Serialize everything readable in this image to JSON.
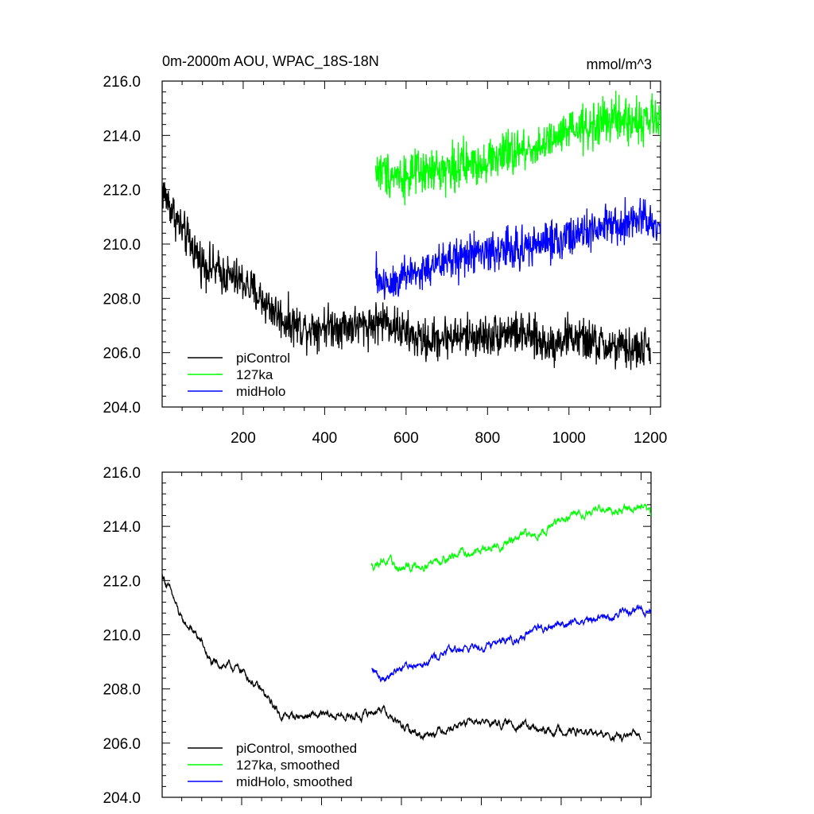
{
  "title": "0m-2000m AOU, WPAC_18S-18N",
  "units": "mmol/m^3",
  "chart_data": [
    {
      "type": "line",
      "panel": "top",
      "xlim": [
        1,
        1225
      ],
      "ylim": [
        204,
        216
      ],
      "x_ticks": [
        200,
        400,
        600,
        800,
        1000,
        1200
      ],
      "x_tick_labels": [
        "200",
        "400",
        "600",
        "800",
        "1000",
        "1200"
      ],
      "y_ticks": [
        204,
        206,
        208,
        210,
        212,
        214,
        216
      ],
      "y_tick_labels": [
        "204.0",
        "206.0",
        "208.0",
        "210.0",
        "212.0",
        "214.0",
        "216.0"
      ],
      "legend_position": "bottom-left",
      "series": [
        {
          "name": "piControl",
          "color": "#000000",
          "x_range": [
            1,
            1200
          ],
          "noise": 0.55,
          "anchors": [
            [
              1,
              212.0
            ],
            [
              50,
              210.5
            ],
            [
              100,
              209.3
            ],
            [
              150,
              208.9
            ],
            [
              200,
              208.6
            ],
            [
              250,
              207.9
            ],
            [
              300,
              207.2
            ],
            [
              350,
              206.9
            ],
            [
              400,
              207.0
            ],
            [
              450,
              207.0
            ],
            [
              500,
              207.0
            ],
            [
              550,
              207.2
            ],
            [
              600,
              206.7
            ],
            [
              650,
              206.4
            ],
            [
              700,
              206.6
            ],
            [
              750,
              206.6
            ],
            [
              800,
              206.6
            ],
            [
              850,
              206.8
            ],
            [
              900,
              206.6
            ],
            [
              950,
              206.3
            ],
            [
              1000,
              206.6
            ],
            [
              1050,
              206.4
            ],
            [
              1100,
              206.2
            ],
            [
              1150,
              206.1
            ],
            [
              1200,
              206.2
            ]
          ]
        },
        {
          "name": "127ka",
          "color": "#00ff00",
          "x_range": [
            525,
            1225
          ],
          "noise": 0.6,
          "anchors": [
            [
              525,
              212.7
            ],
            [
              600,
              212.5
            ],
            [
              650,
              212.6
            ],
            [
              700,
              212.8
            ],
            [
              750,
              212.9
            ],
            [
              800,
              213.1
            ],
            [
              850,
              213.3
            ],
            [
              900,
              213.5
            ],
            [
              950,
              213.7
            ],
            [
              1000,
              214.1
            ],
            [
              1050,
              214.3
            ],
            [
              1100,
              214.6
            ],
            [
              1150,
              214.5
            ],
            [
              1200,
              214.6
            ],
            [
              1225,
              214.4
            ]
          ]
        },
        {
          "name": "midHolo",
          "color": "#0000ff",
          "x_range": [
            525,
            1225
          ],
          "noise": 0.55,
          "anchors": [
            [
              525,
              208.8
            ],
            [
              550,
              208.5
            ],
            [
              600,
              208.9
            ],
            [
              650,
              209.0
            ],
            [
              700,
              209.4
            ],
            [
              750,
              209.6
            ],
            [
              800,
              209.7
            ],
            [
              850,
              209.8
            ],
            [
              900,
              209.9
            ],
            [
              950,
              210.1
            ],
            [
              1000,
              210.3
            ],
            [
              1050,
              210.4
            ],
            [
              1100,
              210.6
            ],
            [
              1150,
              210.8
            ],
            [
              1200,
              210.9
            ],
            [
              1225,
              210.7
            ]
          ]
        }
      ]
    },
    {
      "type": "line",
      "panel": "bottom",
      "xlim": [
        1,
        1225
      ],
      "ylim": [
        204,
        216
      ],
      "x_ticks": [
        200,
        400,
        600,
        800,
        1000,
        1200
      ],
      "y_ticks": [
        204,
        206,
        208,
        210,
        212,
        214,
        216
      ],
      "y_tick_labels": [
        "204.0",
        "206.0",
        "208.0",
        "210.0",
        "212.0",
        "214.0",
        "216.0"
      ],
      "legend_position": "bottom-left",
      "series": [
        {
          "name": "piControl, smoothed",
          "color": "#000000",
          "x_range": [
            1,
            1200
          ],
          "noise": 0.2,
          "anchors": [
            [
              1,
              212.2
            ],
            [
              25,
              211.5
            ],
            [
              50,
              210.5
            ],
            [
              75,
              210.2
            ],
            [
              100,
              209.7
            ],
            [
              125,
              208.9
            ],
            [
              150,
              208.9
            ],
            [
              200,
              208.7
            ],
            [
              250,
              207.9
            ],
            [
              300,
              207.0
            ],
            [
              350,
              207.0
            ],
            [
              400,
              207.0
            ],
            [
              450,
              207.0
            ],
            [
              500,
              207.0
            ],
            [
              550,
              207.3
            ],
            [
              600,
              206.6
            ],
            [
              650,
              206.3
            ],
            [
              700,
              206.5
            ],
            [
              750,
              206.7
            ],
            [
              800,
              206.8
            ],
            [
              850,
              206.7
            ],
            [
              900,
              206.7
            ],
            [
              950,
              206.4
            ],
            [
              1000,
              206.5
            ],
            [
              1050,
              206.4
            ],
            [
              1100,
              206.3
            ],
            [
              1150,
              206.2
            ],
            [
              1200,
              206.3
            ]
          ]
        },
        {
          "name": "127ka, smoothed",
          "color": "#00ff00",
          "x_range": [
            525,
            1225
          ],
          "noise": 0.22,
          "anchors": [
            [
              525,
              212.5
            ],
            [
              550,
              212.8
            ],
            [
              600,
              212.4
            ],
            [
              650,
              212.6
            ],
            [
              700,
              212.8
            ],
            [
              750,
              213.0
            ],
            [
              800,
              213.1
            ],
            [
              850,
              213.3
            ],
            [
              900,
              213.6
            ],
            [
              950,
              213.8
            ],
            [
              1000,
              214.2
            ],
            [
              1050,
              214.5
            ],
            [
              1100,
              214.7
            ],
            [
              1150,
              214.6
            ],
            [
              1200,
              214.7
            ],
            [
              1225,
              214.4
            ]
          ]
        },
        {
          "name": "midHolo, smoothed",
          "color": "#0000ff",
          "x_range": [
            525,
            1225
          ],
          "noise": 0.2,
          "anchors": [
            [
              525,
              208.7
            ],
            [
              550,
              208.4
            ],
            [
              600,
              208.8
            ],
            [
              650,
              209.0
            ],
            [
              700,
              209.3
            ],
            [
              750,
              209.5
            ],
            [
              800,
              209.6
            ],
            [
              850,
              209.8
            ],
            [
              900,
              209.9
            ],
            [
              950,
              210.2
            ],
            [
              1000,
              210.4
            ],
            [
              1050,
              210.5
            ],
            [
              1100,
              210.6
            ],
            [
              1150,
              210.8
            ],
            [
              1200,
              211.0
            ],
            [
              1225,
              210.7
            ]
          ]
        }
      ]
    }
  ]
}
